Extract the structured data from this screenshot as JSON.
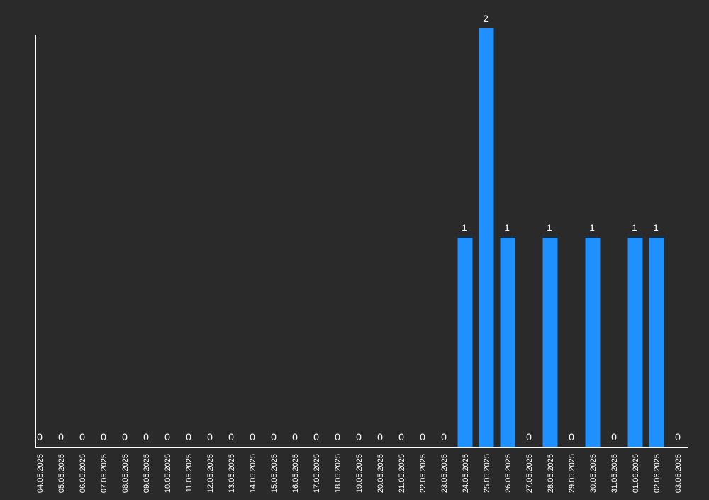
{
  "chart_data": {
    "type": "bar",
    "categories": [
      "04.05.2025",
      "05.05.2025",
      "06.05.2025",
      "07.05.2025",
      "08.05.2025",
      "09.05.2025",
      "10.05.2025",
      "11.05.2025",
      "12.05.2025",
      "13.05.2025",
      "14.05.2025",
      "15.05.2025",
      "16.05.2025",
      "17.05.2025",
      "18.05.2025",
      "19.05.2025",
      "20.05.2025",
      "21.05.2025",
      "22.05.2025",
      "23.05.2025",
      "24.05.2025",
      "25.05.2025",
      "26.05.2025",
      "27.05.2025",
      "28.05.2025",
      "29.05.2025",
      "30.05.2025",
      "31.05.2025",
      "01.06.2025",
      "02.06.2025",
      "03.06.2025"
    ],
    "values": [
      0,
      0,
      0,
      0,
      0,
      0,
      0,
      0,
      0,
      0,
      0,
      0,
      0,
      0,
      0,
      0,
      0,
      0,
      0,
      0,
      1,
      2,
      1,
      0,
      1,
      0,
      1,
      0,
      1,
      1,
      0
    ],
    "ylim": [
      0,
      2
    ],
    "grid": false,
    "legend": "none",
    "colors": {
      "background": "#2a2a2a",
      "bar": "#1e90ff",
      "axis": "#ffffff",
      "text": "#ffffff"
    }
  }
}
